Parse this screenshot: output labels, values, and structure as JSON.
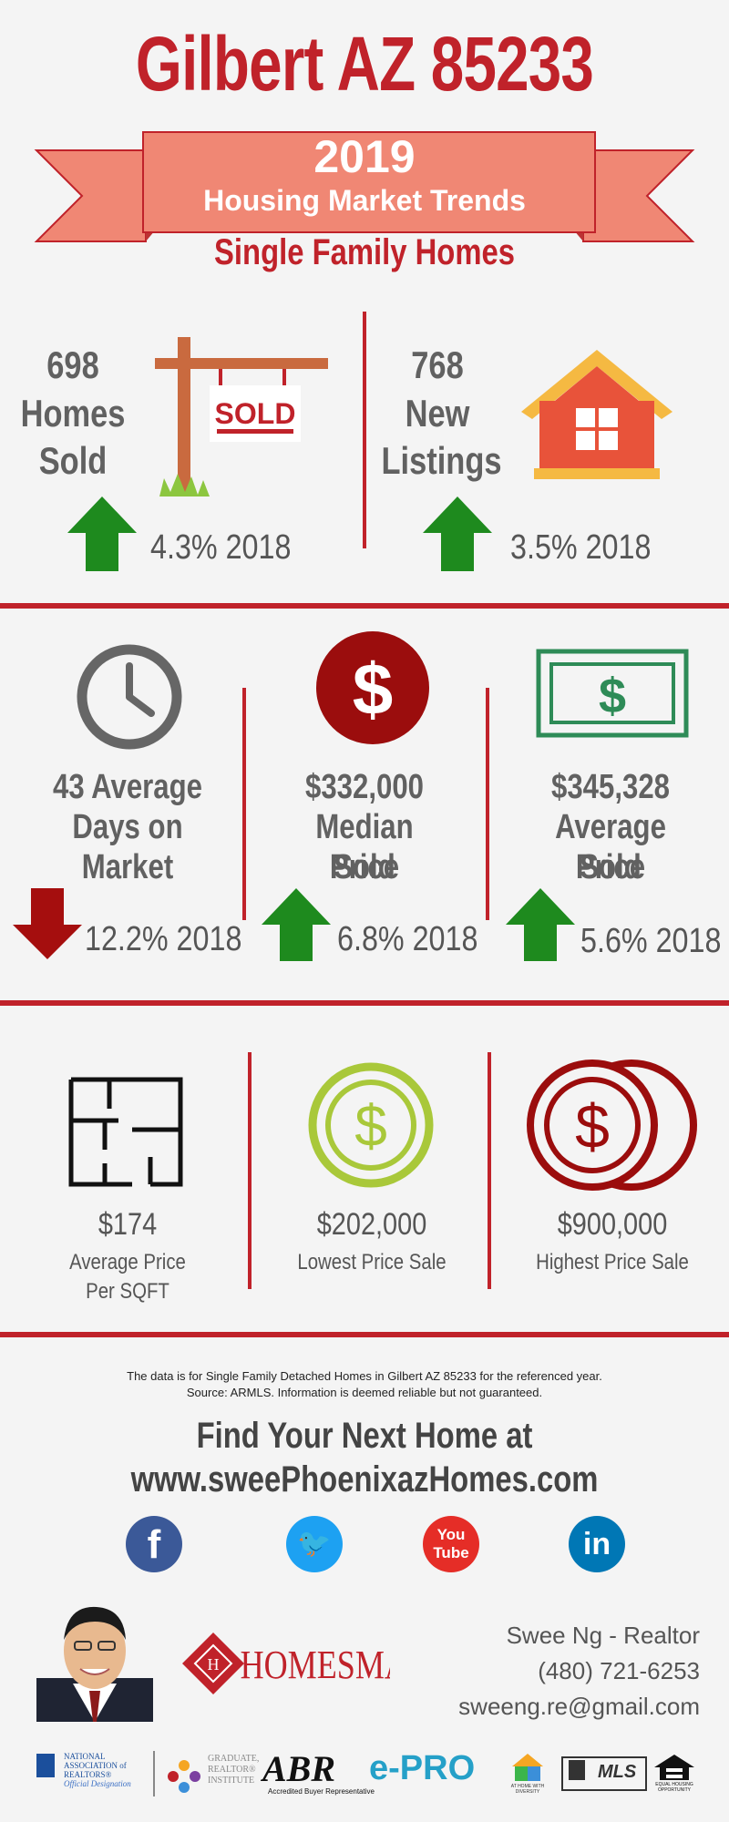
{
  "header": {
    "title": "Gilbert AZ 85233",
    "year": "2019",
    "banner_subtitle": "Housing Market Trends",
    "category": "Single Family Homes"
  },
  "top_stats": [
    {
      "value": "698",
      "label_lines": [
        "Homes",
        "Sold"
      ],
      "sign": "SOLD",
      "change": "4.3% 2018",
      "direction": "up",
      "icon": "sold-sign-icon"
    },
    {
      "value": "768",
      "label_lines": [
        "New",
        "Listings"
      ],
      "change": "3.5% 2018",
      "direction": "up",
      "icon": "house-icon"
    }
  ],
  "mid_stats": [
    {
      "label_lines": [
        "43 Average",
        "Days on",
        "Market"
      ],
      "change": "12.2% 2018",
      "direction": "down",
      "icon": "clock-icon"
    },
    {
      "label_lines": [
        "$332,000",
        "Median Sold",
        "Price"
      ],
      "change": "6.8% 2018",
      "direction": "up",
      "icon": "dollar-circle-icon"
    },
    {
      "label_lines": [
        "$345,328",
        "Average Sold",
        "Price"
      ],
      "change": "5.6% 2018",
      "direction": "up",
      "icon": "banknote-icon"
    }
  ],
  "bottom_stats": [
    {
      "value": "$174",
      "caption_lines": [
        "Average Price",
        "Per SQFT"
      ],
      "icon": "floor-plan-icon"
    },
    {
      "value": "$202,000",
      "caption_lines": [
        "Lowest Price Sale"
      ],
      "icon": "coin-icon"
    },
    {
      "value": "$900,000",
      "caption_lines": [
        "Highest Price Sale"
      ],
      "icon": "coins-icon"
    }
  ],
  "footer": {
    "note_line1": "The data is for Single Family Detached Homes in Gilbert AZ 85233 for the referenced year.",
    "note_line2": "Source: ARMLS. Information is deemed reliable but not guaranteed.",
    "cta_line1": "Find Your Next Home at",
    "cta_line2": "www.sweePhoenixazHomes.com",
    "social": [
      {
        "name": "facebook-icon",
        "glyph": "f",
        "color": "#3b5998"
      },
      {
        "name": "twitter-icon",
        "glyph": "🐦",
        "color": "#1da1f2"
      },
      {
        "name": "youtube-icon",
        "glyph": "You\nTube",
        "color": "#e52d27"
      },
      {
        "name": "linkedin-icon",
        "glyph": "in",
        "color": "#0077b5"
      }
    ],
    "brokerage": "HOMESMART",
    "agent_name": "Swee Ng - Realtor",
    "phone": "(480) 721-6253",
    "email": "sweeng.re@gmail.com",
    "logos": {
      "nar_line1": "NATIONAL",
      "nar_line2": "ASSOCIATION of",
      "nar_line3": "REALTORS®",
      "nar_line4": "Official Designation",
      "gri_line1": "GRADUATE,",
      "gri_line2": "REALTOR®",
      "gri_line3": "INSTITUTE",
      "abr": "ABR",
      "abr_sub": "Accredited Buyer Representative",
      "epro": "e-PRO",
      "diversity": "AT HOME WITH DIVERSITY",
      "mls": "MLS",
      "eho": "EQUAL HOUSING OPPORTUNITY"
    }
  },
  "colors": {
    "accent": "#c0222a",
    "banner": "#f08774",
    "up_arrow": "#1e8a1e",
    "down_arrow": "#a50e0e",
    "green": "#2e8b57",
    "lime": "#a9c83a"
  }
}
